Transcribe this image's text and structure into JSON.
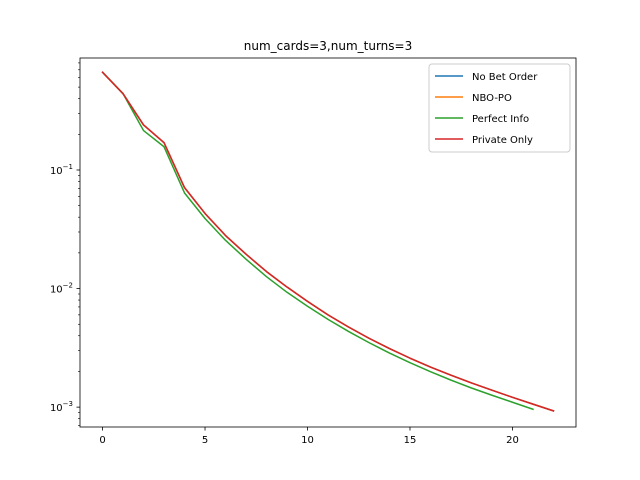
{
  "chart_data": {
    "type": "line",
    "title": "num_cards=3,num_turns=3",
    "xlabel": "",
    "ylabel": "",
    "xlim": [
      -1.1,
      23.1
    ],
    "ylim": [
      0.00068,
      0.88
    ],
    "yscale": "log",
    "grid": false,
    "legend_position": "top-right",
    "x_ticks": [
      0,
      5,
      10,
      15,
      20
    ],
    "y_ticks": [
      {
        "value": 0.001,
        "base": "10",
        "exp": "−3"
      },
      {
        "value": 0.01,
        "base": "10",
        "exp": "−2"
      },
      {
        "value": 0.1,
        "base": "10",
        "exp": "−1"
      }
    ],
    "series": [
      {
        "name": "No Bet Order",
        "color": "#1f77b4",
        "x": [
          0,
          1,
          2,
          3,
          4,
          5,
          6,
          7,
          8,
          9,
          10,
          11,
          12,
          13,
          14,
          15,
          16,
          17,
          18,
          19,
          20,
          21,
          22
        ],
        "y": [
          0.667,
          0.44,
          0.24,
          0.17,
          0.071,
          0.043,
          0.028,
          0.0195,
          0.0139,
          0.0103,
          0.0078,
          0.006,
          0.00474,
          0.00381,
          0.00312,
          0.00259,
          0.00218,
          0.00186,
          0.0016,
          0.00139,
          0.00121,
          0.00106,
          0.00093
        ]
      },
      {
        "name": "NBO-PO",
        "color": "#ff7f0e",
        "x": [
          0,
          1,
          2,
          3,
          4,
          5,
          6,
          7,
          8,
          9,
          10,
          11,
          12,
          13,
          14,
          15,
          16,
          17,
          18,
          19,
          20,
          21,
          22
        ],
        "y": [
          0.667,
          0.44,
          0.24,
          0.17,
          0.071,
          0.043,
          0.028,
          0.0195,
          0.0139,
          0.0103,
          0.0078,
          0.006,
          0.00474,
          0.00381,
          0.00312,
          0.00259,
          0.00218,
          0.00186,
          0.0016,
          0.00139,
          0.00121,
          0.00106,
          0.00093
        ]
      },
      {
        "name": "Perfect Info",
        "color": "#2ca02c",
        "x": [
          0,
          1,
          2,
          3,
          4,
          5,
          6,
          7,
          8,
          9,
          10,
          11,
          12,
          13,
          14,
          15,
          16,
          17,
          18,
          19,
          20,
          21
        ],
        "y": [
          0.667,
          0.44,
          0.215,
          0.157,
          0.064,
          0.039,
          0.0255,
          0.0177,
          0.0126,
          0.0093,
          0.0071,
          0.0055,
          0.00435,
          0.0035,
          0.00286,
          0.00237,
          0.00199,
          0.00169,
          0.00145,
          0.00126,
          0.0011,
          0.00096
        ]
      },
      {
        "name": "Private Only",
        "color": "#d62728",
        "x": [
          0,
          1,
          2,
          3,
          4,
          5,
          6,
          7,
          8,
          9,
          10,
          11,
          12,
          13,
          14,
          15,
          16,
          17,
          18,
          19,
          20,
          21,
          22
        ],
        "y": [
          0.667,
          0.44,
          0.24,
          0.17,
          0.071,
          0.043,
          0.028,
          0.0195,
          0.0139,
          0.0103,
          0.0078,
          0.006,
          0.00474,
          0.00381,
          0.00312,
          0.00259,
          0.00218,
          0.00186,
          0.0016,
          0.00139,
          0.00121,
          0.00106,
          0.00093
        ]
      }
    ]
  }
}
